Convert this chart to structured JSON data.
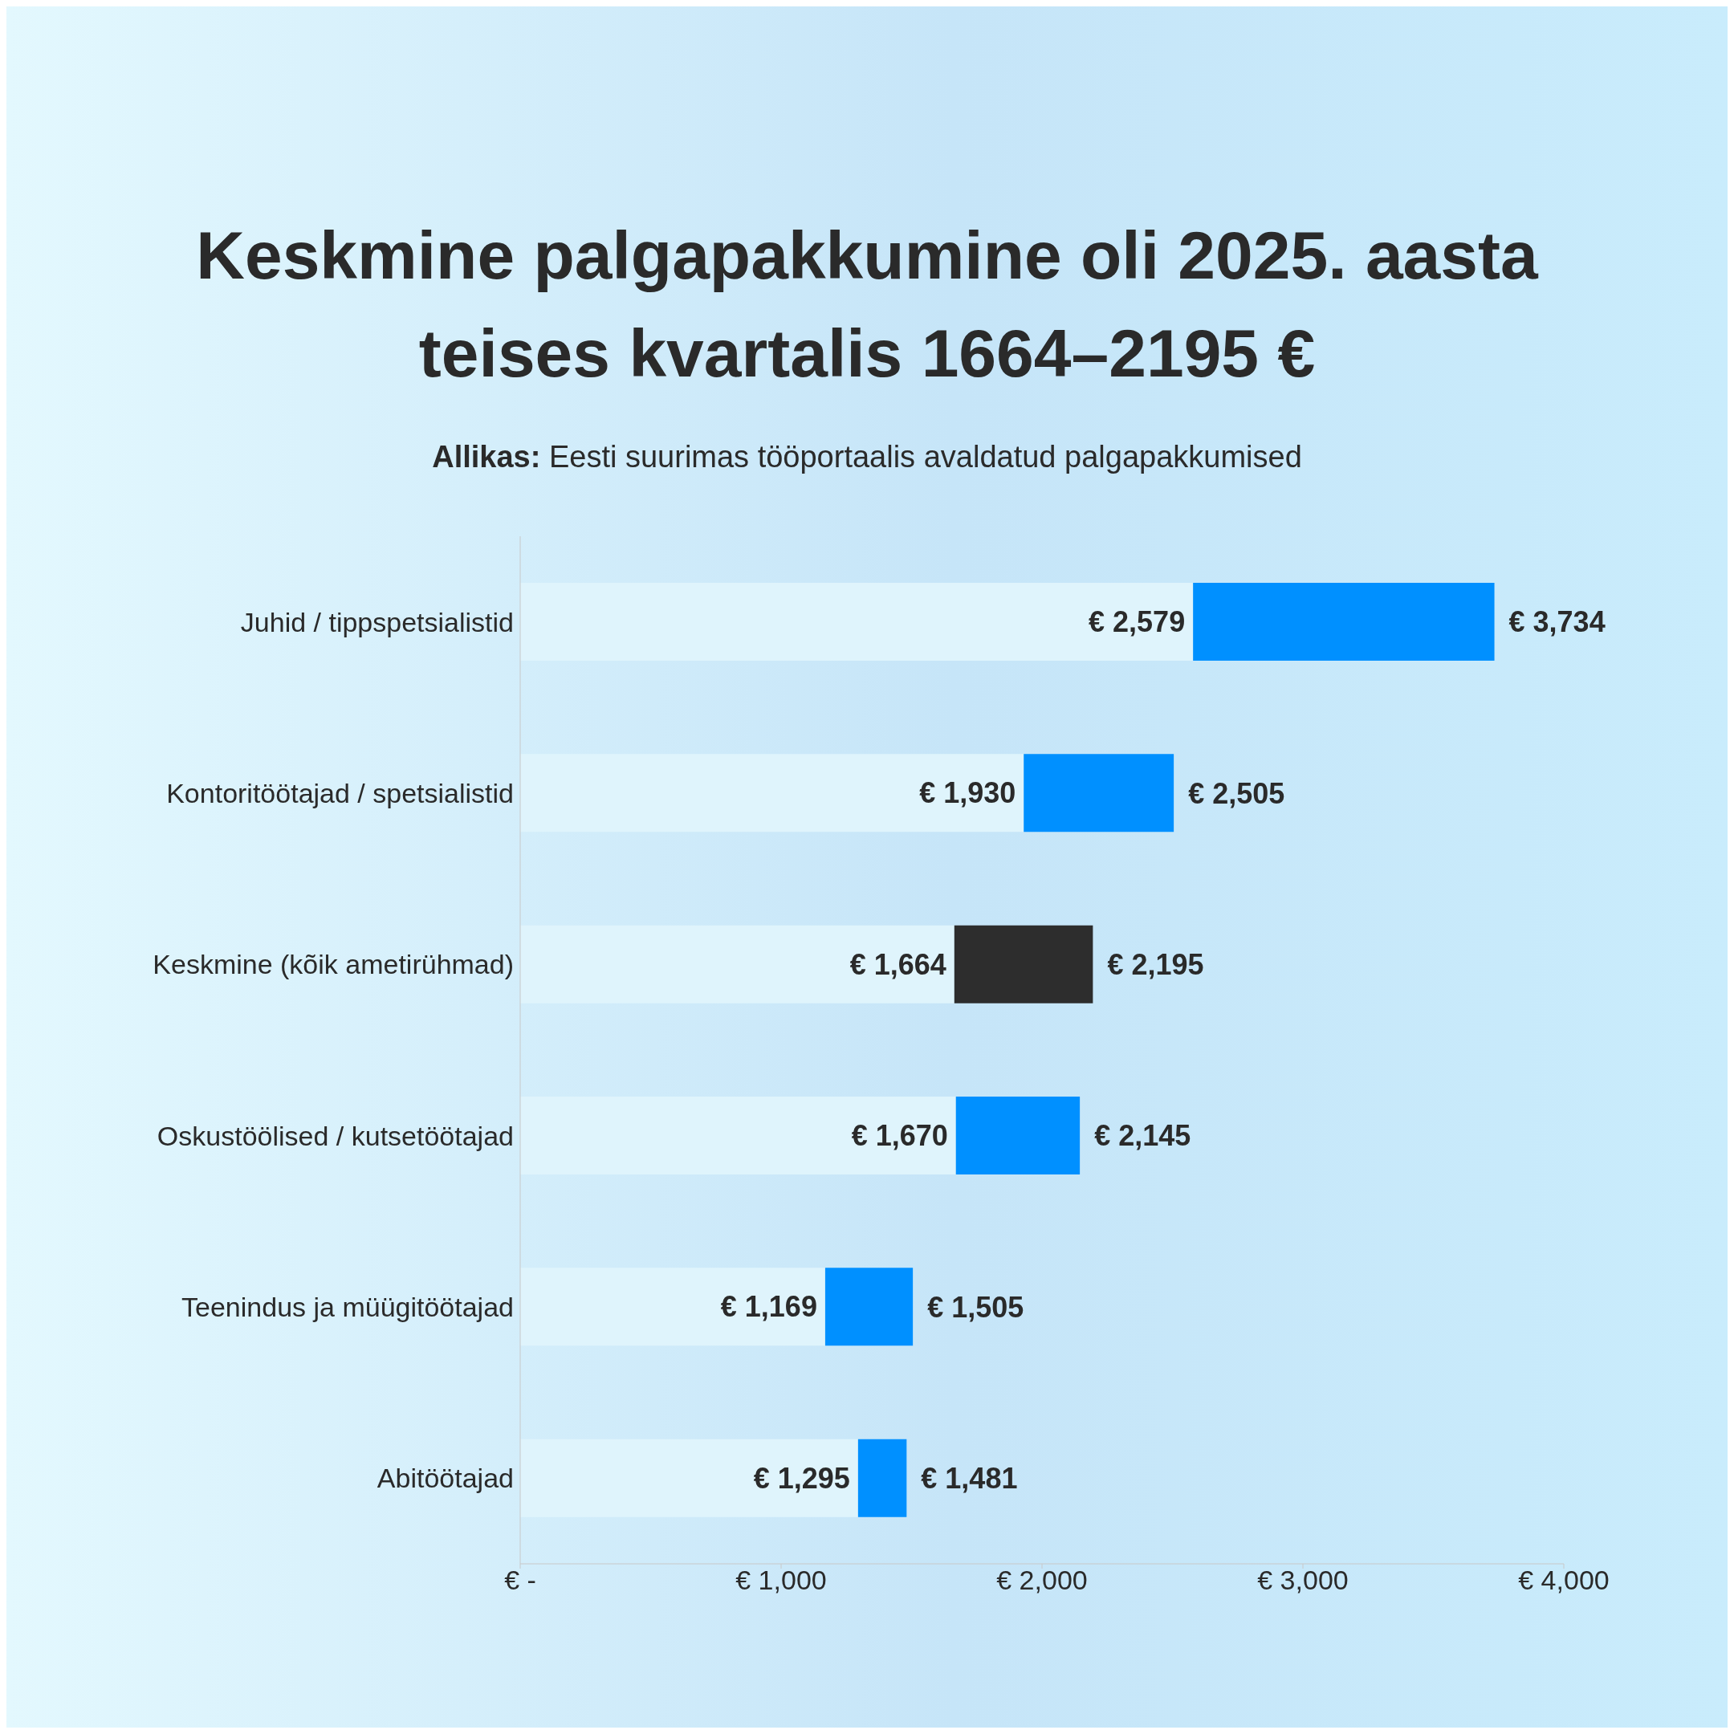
{
  "chart_data": {
    "type": "bar",
    "orientation": "horizontal",
    "stacked": true,
    "title": "Keskmine palgapakkumine oli 2025. aasta teises kvartalis 1664–2195 €",
    "subtitle": "Allikas: Eesti suurimas tööportaalis avaldatud palgapakkumised",
    "categories": [
      "Juhid / tippspetsialistid",
      "Kontoritöötajad / spetsialistid",
      "Keskmine (kõik ametirühmad)",
      "Oskustöölised / kutsetöötajad",
      "Teenindus ja müügitöötajad",
      "Abitöötajad"
    ],
    "series": [
      {
        "color": "#dff4fc",
        "values": [
          2579,
          1930,
          1664,
          1670,
          1169,
          1295
        ],
        "value_labels": [
          "€ 2,579",
          "€ 1,930",
          "€ 1,664",
          "€ 1,670",
          "€ 1,169",
          "€ 1,295"
        ]
      },
      {
        "colors": [
          "#0090ff",
          "#0090ff",
          "#2d2d2d",
          "#0090ff",
          "#0090ff",
          "#0090ff"
        ],
        "values": [
          1155,
          575,
          531,
          475,
          336,
          186
        ]
      }
    ],
    "annotations": [
      {
        "text": "€ 3,734",
        "x": 3734,
        "y": "Juhid / tippspetsialistid"
      },
      {
        "text": "€ 2,505",
        "x": 2505,
        "y": "Kontoritöötajad / spetsialistid"
      },
      {
        "text": "€ 2,195",
        "x": 2195,
        "y": "Keskmine (kõik ametirühmad)"
      },
      {
        "text": "€ 2,145",
        "x": 2145,
        "y": "Oskustöölised / kutsetöötajad"
      },
      {
        "text": "€ 1,505",
        "x": 1505,
        "y": "Teenindus ja müügitöötajad"
      },
      {
        "text": "€ 1,481",
        "x": 1481,
        "y": "Abitöötajad"
      }
    ],
    "xlim": [
      0,
      4000
    ],
    "xticks": [
      {
        "value": 0,
        "label": "€ -"
      },
      {
        "value": 1000,
        "label": "€ 1,000"
      },
      {
        "value": 2000,
        "label": "€ 2,000"
      },
      {
        "value": 3000,
        "label": "€ 3,000"
      },
      {
        "value": 4000,
        "label": "€ 4,000"
      }
    ],
    "grid": false,
    "legend": false
  }
}
